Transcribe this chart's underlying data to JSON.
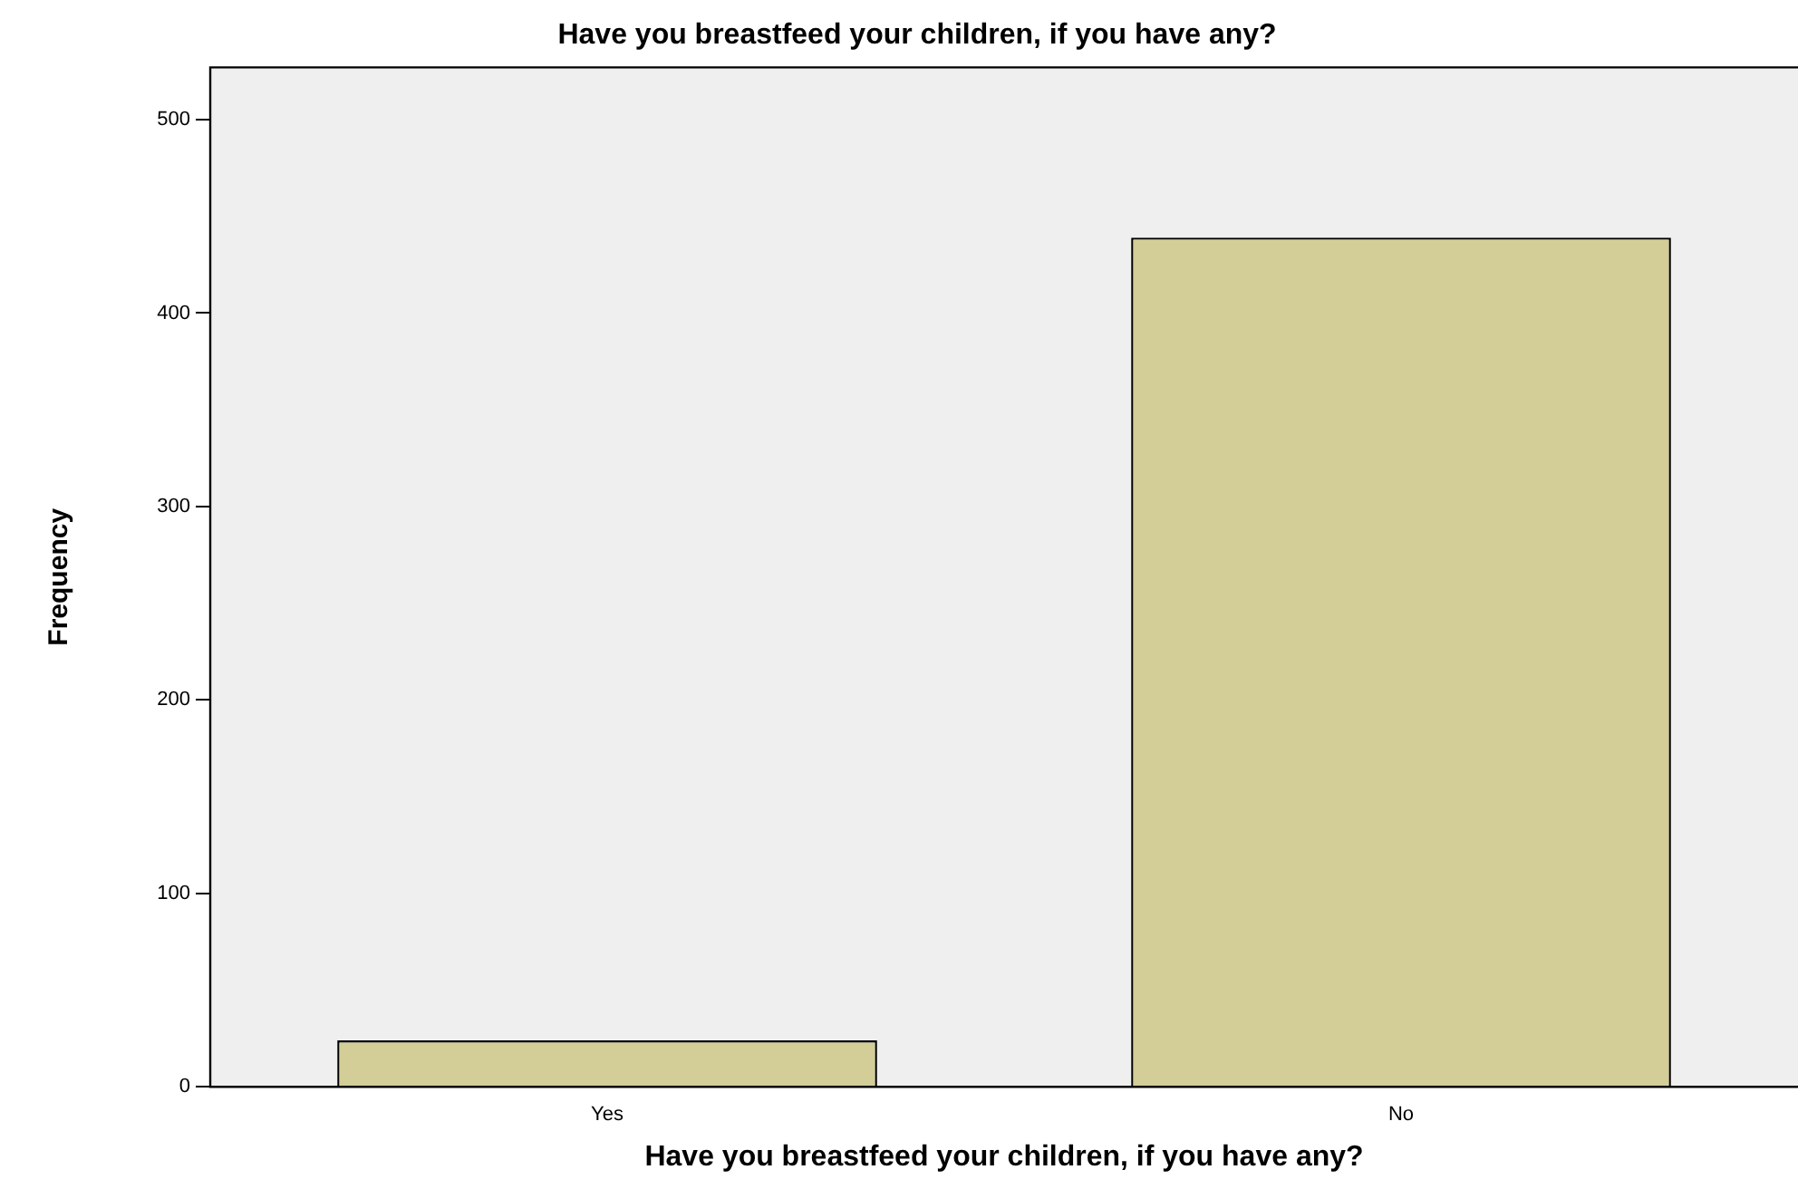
{
  "chart_data": {
    "type": "bar",
    "title": "Have you breastfeed your children, if you have any?",
    "xlabel": "Have you breastfeed your children, if you have any?",
    "ylabel": "Frequency",
    "categories": [
      "Yes",
      "No"
    ],
    "values": [
      24,
      439
    ],
    "color": "#d3cd97",
    "ylim": [
      0,
      527
    ],
    "yticks": [
      0,
      100,
      200,
      300,
      400,
      500
    ],
    "grid": false
  }
}
